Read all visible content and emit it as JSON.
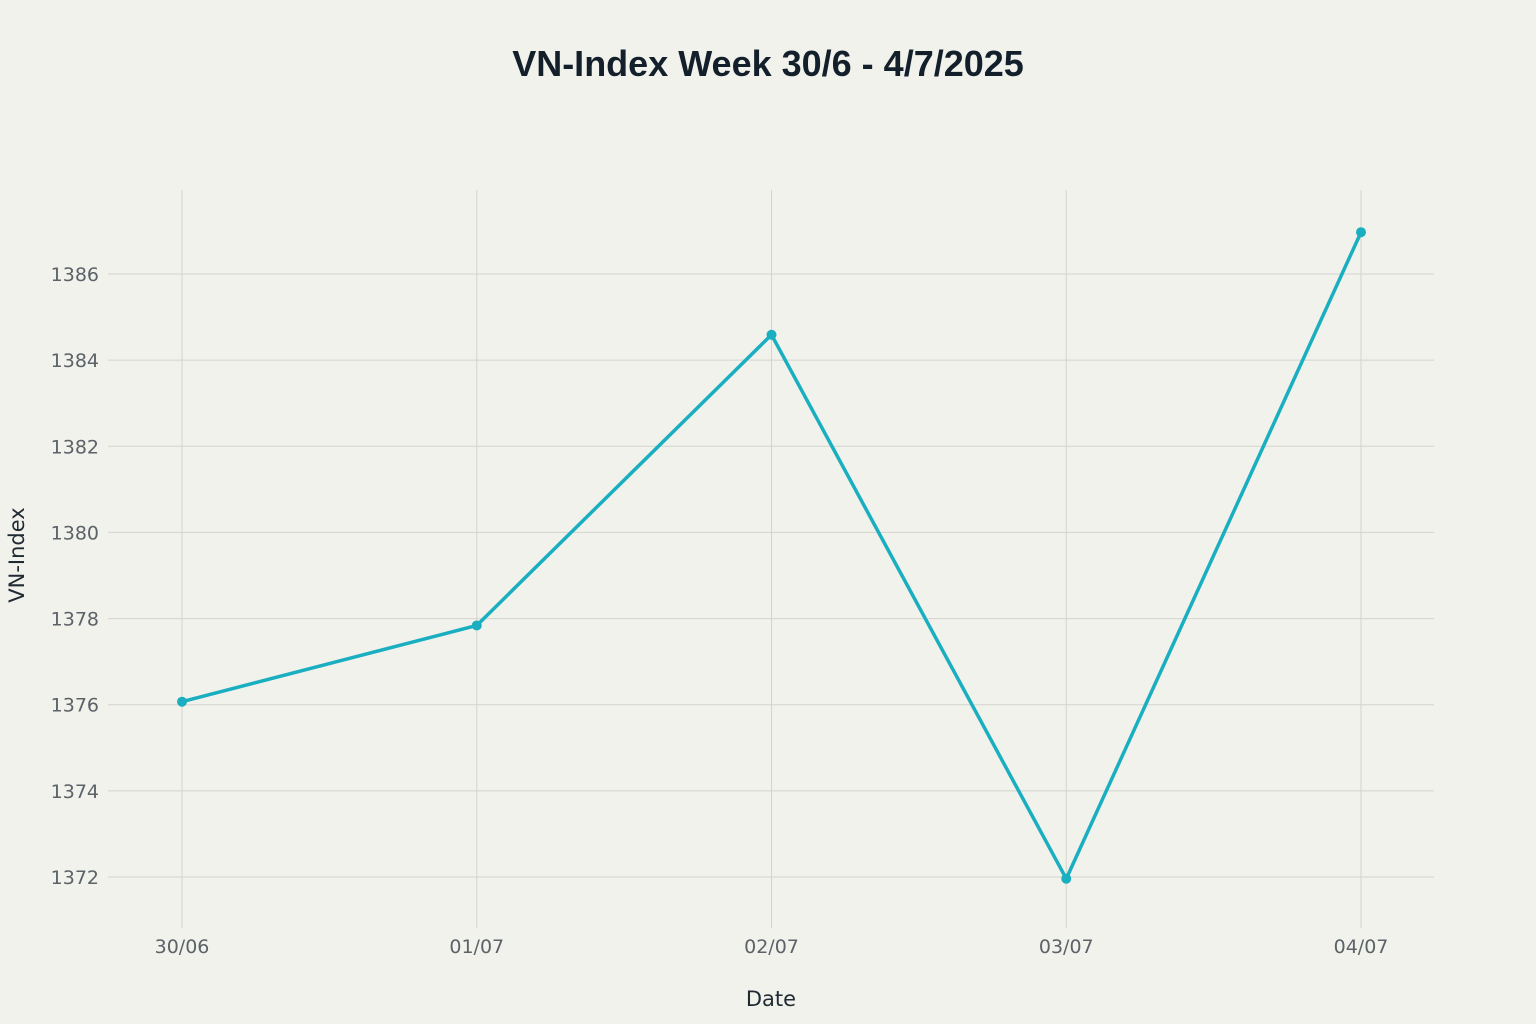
{
  "chart_data": {
    "type": "line",
    "title": "VN-Index Week 30/6 - 4/7/2025",
    "xlabel": "Date",
    "ylabel": "VN-Index",
    "categories": [
      "30/06",
      "01/07",
      "02/07",
      "03/07",
      "04/07"
    ],
    "series": [
      {
        "values": [
          1376.07,
          1377.84,
          1384.59,
          1371.96,
          1386.97
        ],
        "color": "#1aaec1"
      }
    ],
    "y_ticks": [
      "1372",
      "1374",
      "1376",
      "1378",
      "1380",
      "1382",
      "1384",
      "1386"
    ],
    "ylim": [
      1371.0,
      1388.0
    ],
    "grid": true,
    "background": "#f2f2ec"
  }
}
